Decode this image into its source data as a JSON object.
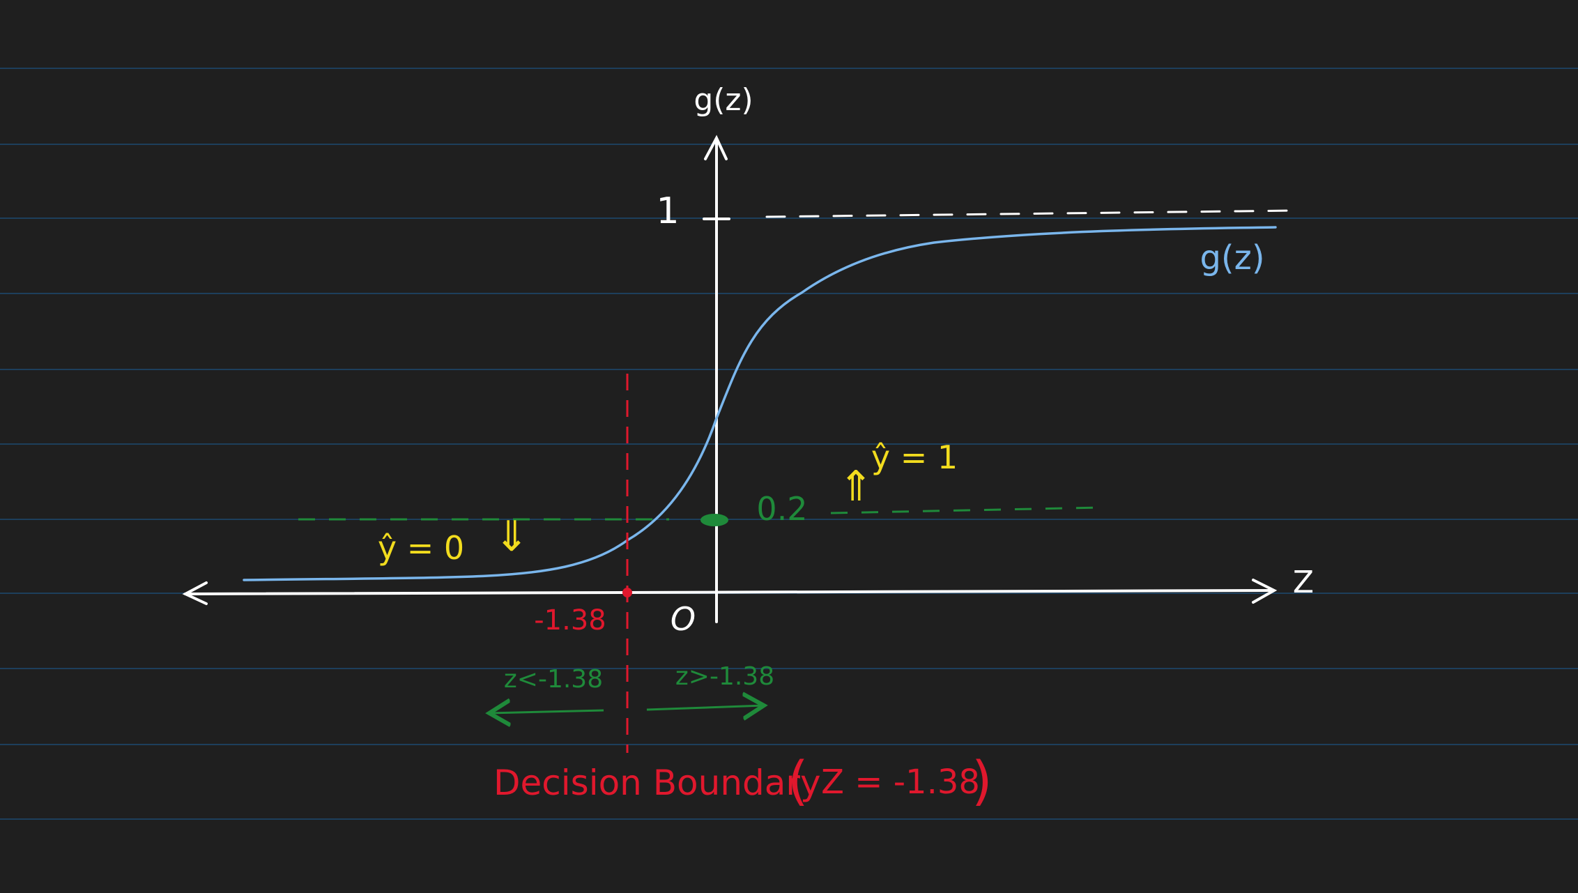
{
  "colors": {
    "background": "#1f1f1f",
    "ruled_line": "#1d3f5c",
    "axis": "#ffffff",
    "curve": "#7ab6ec",
    "threshold": "#1f8a3a",
    "boundary": "#e0182d",
    "prediction": "#f2dc1e"
  },
  "axes": {
    "y_label": "g(z)",
    "x_label": "Z",
    "origin_label": "O",
    "y_tick_label": "1"
  },
  "curve": {
    "label": "g(z)"
  },
  "threshold": {
    "value_label": "0.2"
  },
  "boundary": {
    "z_value_label": "-1.38",
    "title": "Decision Boundary",
    "equation": "Z = -1.38"
  },
  "regions": {
    "left_condition": "z<-1.38",
    "right_condition": "z>-1.38"
  },
  "predictions": {
    "y_hat_zero": "ŷ = 0",
    "y_hat_one": "ŷ = 1",
    "down_arrow": "⇓",
    "up_arrow": "⇑"
  }
}
